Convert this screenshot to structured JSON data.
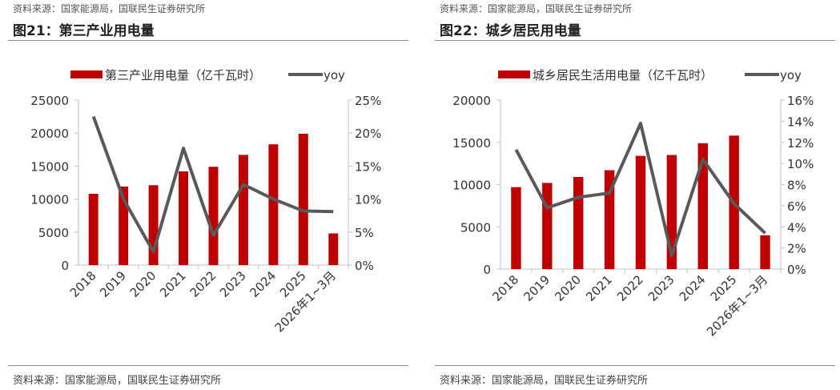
{
  "panels": [
    {
      "source_top": "资料来源：国家能源局，国联民生证券研究所",
      "title": "图21：第三产业用电量",
      "source_bottom": "资料来源：国家能源局，国联民生证券研究所"
    },
    {
      "source_top": "资料来源：国家能源局，国联民生证券研究所",
      "title": "图22：城乡居民用电量",
      "source_bottom": "资料来源：国家能源局，国联民生证券研究所"
    }
  ],
  "chart_data": [
    {
      "type": "bar+line",
      "categories": [
        "2018",
        "2019",
        "2020",
        "2021",
        "2022",
        "2023",
        "2024",
        "2025",
        "2026年1~3月"
      ],
      "series": [
        {
          "name": "第三产业用电量（亿千瓦时）",
          "type": "bar",
          "axis": "left",
          "values": [
            10800,
            11900,
            12100,
            14200,
            14900,
            16700,
            18300,
            19900,
            4800
          ]
        },
        {
          "name": "yoy",
          "type": "line",
          "axis": "right",
          "values": [
            22.5,
            10.0,
            2.0,
            17.7,
            4.5,
            12.2,
            10.0,
            8.2,
            8.1
          ]
        }
      ],
      "left_axis": {
        "min": 0,
        "max": 25000,
        "ticks": [
          "0",
          "5000",
          "10000",
          "15000",
          "20000",
          "25000"
        ]
      },
      "right_axis": {
        "min": 0,
        "max": 25,
        "ticks": [
          "0%",
          "5%",
          "10%",
          "15%",
          "20%",
          "25%"
        ]
      },
      "legend_position": "top",
      "colors": {
        "bar": "#c00000",
        "line": "#595959"
      }
    },
    {
      "type": "bar+line",
      "categories": [
        "2018",
        "2019",
        "2020",
        "2021",
        "2022",
        "2023",
        "2024",
        "2025",
        "2026年1~3月"
      ],
      "series": [
        {
          "name": "城乡居民生活用电量（亿千瓦时）",
          "type": "bar",
          "axis": "left",
          "values": [
            9700,
            10200,
            10900,
            11700,
            13400,
            13500,
            14900,
            15800,
            4000
          ]
        },
        {
          "name": "yoy",
          "type": "line",
          "axis": "right",
          "values": [
            11.3,
            5.8,
            6.8,
            7.2,
            13.8,
            1.3,
            10.4,
            6.2,
            3.4
          ]
        }
      ],
      "left_axis": {
        "min": 0,
        "max": 20000,
        "ticks": [
          "0",
          "5000",
          "10000",
          "15000",
          "20000"
        ]
      },
      "right_axis": {
        "min": 0,
        "max": 16,
        "ticks": [
          "0%",
          "2%",
          "4%",
          "6%",
          "8%",
          "10%",
          "12%",
          "14%",
          "16%"
        ]
      },
      "legend_position": "top",
      "colors": {
        "bar": "#c00000",
        "line": "#595959"
      }
    }
  ]
}
